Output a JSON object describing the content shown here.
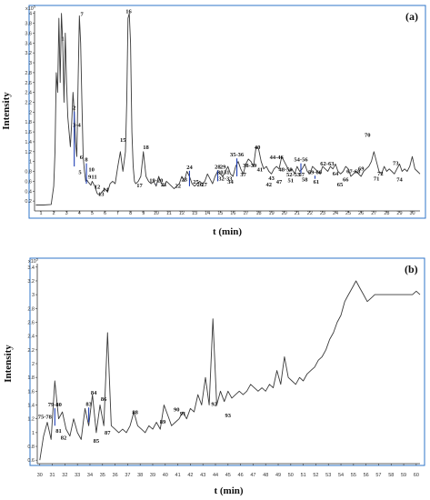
{
  "chart_data": [
    {
      "type": "line",
      "panel": "(a)",
      "scale_label": "x10",
      "scale_exp": "5",
      "xlabel": "t (min)",
      "ylabel": "Intensity",
      "xlim": [
        0.5,
        30.6
      ],
      "ylim": [
        0,
        4.05
      ],
      "x_ticks": [
        "1",
        "2",
        "3",
        "4",
        "5",
        "6",
        "7",
        "8",
        "9",
        "10",
        "11",
        "12",
        "13",
        "14",
        "15",
        "16",
        "17",
        "18",
        "19",
        "20",
        "21",
        "22",
        "23",
        "24",
        "25",
        "26",
        "27",
        "28",
        "29",
        "30"
      ],
      "y_ticks": [
        "0.2",
        "0.4",
        "0.6",
        "0.8",
        "1",
        "1.2",
        "1.4",
        "1.6",
        "1.8",
        "2",
        "2.2",
        "2.4",
        "2.6",
        "2.8",
        "3",
        "3.2",
        "3.4",
        "3.6",
        "3.8",
        "4"
      ],
      "series": [
        {
          "x": [
            0.6,
            1.2,
            1.8,
            2.0,
            2.1,
            2.2,
            2.3,
            2.4,
            2.5,
            2.6,
            2.7,
            2.8,
            2.9,
            3.0,
            3.1,
            3.2,
            3.3,
            3.4,
            3.5,
            3.6,
            3.7,
            3.8,
            3.9,
            4.0,
            4.1,
            4.2,
            4.3,
            4.4,
            4.5,
            4.6,
            4.7,
            4.8,
            4.9,
            5.0,
            5.2,
            5.4,
            5.6,
            5.8,
            6.0,
            6.2,
            6.4,
            6.6,
            6.8,
            7.0,
            7.2,
            7.4,
            7.6,
            7.7,
            7.8,
            7.9,
            8.0,
            8.1,
            8.2,
            8.3,
            8.4,
            8.6,
            8.8,
            9.0,
            9.2,
            9.4,
            9.6,
            9.8,
            10.0,
            10.2,
            10.4,
            10.6,
            10.8,
            11.0,
            11.2,
            11.4,
            11.6,
            11.8,
            12.0,
            12.2,
            12.4,
            12.6,
            12.8,
            13.0,
            13.2,
            13.4,
            13.6,
            13.8,
            14.0,
            14.2,
            14.4,
            14.6,
            14.8,
            15.0,
            15.2,
            15.4,
            15.6,
            15.8,
            16.0,
            16.2,
            16.4,
            16.6,
            16.8,
            17.0,
            17.2,
            17.4,
            17.6,
            17.8,
            18.0,
            18.2,
            18.4,
            18.6,
            18.8,
            19.0,
            19.2,
            19.4,
            19.6,
            19.8,
            20.0,
            20.2,
            20.4,
            20.6,
            20.8,
            21.0,
            21.2,
            21.4,
            21.6,
            21.8,
            22.0,
            22.2,
            22.4,
            22.6,
            22.8,
            23.0,
            23.2,
            23.4,
            23.6,
            23.8,
            24.0,
            24.2,
            24.4,
            24.6,
            24.8,
            25.0,
            25.2,
            25.4,
            25.6,
            25.8,
            26.0,
            26.2,
            26.4,
            26.6,
            26.8,
            27.0,
            27.2,
            27.4,
            27.6,
            27.8,
            28.0,
            28.2,
            28.4,
            28.6,
            28.8,
            29.0,
            29.2,
            29.4,
            29.6,
            29.8,
            30.0,
            30.2,
            30.4,
            30.6
          ],
          "y": [
            0.12,
            0.12,
            0.13,
            0.5,
            1.2,
            2.8,
            2.4,
            3.9,
            2.6,
            4.0,
            3.4,
            2.2,
            3.6,
            2.6,
            1.9,
            1.6,
            1.3,
            1.8,
            2.4,
            2.0,
            1.4,
            1.1,
            2.6,
            3.95,
            3.4,
            2.2,
            1.1,
            0.8,
            0.6,
            0.62,
            0.58,
            0.55,
            0.52,
            0.6,
            0.5,
            0.35,
            0.32,
            0.4,
            0.45,
            0.38,
            0.55,
            0.6,
            0.55,
            0.9,
            1.2,
            0.8,
            1.2,
            2.2,
            3.9,
            4.0,
            3.4,
            1.6,
            0.9,
            0.6,
            0.55,
            0.6,
            0.7,
            1.2,
            0.7,
            0.6,
            0.55,
            0.6,
            0.5,
            0.7,
            0.55,
            0.5,
            0.6,
            0.55,
            0.5,
            0.45,
            0.5,
            0.55,
            0.7,
            0.6,
            0.8,
            0.7,
            0.55,
            0.5,
            0.55,
            0.6,
            0.55,
            0.6,
            0.75,
            0.65,
            0.55,
            0.7,
            0.8,
            0.75,
            0.7,
            0.8,
            0.9,
            0.75,
            0.7,
            0.9,
            1.0,
            0.85,
            0.75,
            0.95,
            1.05,
            1.0,
            0.9,
            1.3,
            1.25,
            1.0,
            0.85,
            0.9,
            0.8,
            0.75,
            0.85,
            0.9,
            0.85,
            1.1,
            1.0,
            0.9,
            0.8,
            0.85,
            0.75,
            0.9,
            0.8,
            0.85,
            0.95,
            0.8,
            0.75,
            0.9,
            0.85,
            0.8,
            0.75,
            0.9,
            0.85,
            0.8,
            0.9,
            0.85,
            0.95,
            0.8,
            0.75,
            0.8,
            0.9,
            0.85,
            0.7,
            0.75,
            0.8,
            0.75,
            0.7,
            0.8,
            0.85,
            0.9,
            1.0,
            1.2,
            1.0,
            0.8,
            0.75,
            0.9,
            0.8,
            0.85,
            0.8,
            0.75,
            0.85,
            0.95,
            0.8,
            0.85,
            0.8,
            0.9,
            1.1,
            0.85,
            0.8,
            0.75
          ]
        }
      ],
      "peaks": [
        {
          "label": "1",
          "x": 2.7,
          "y": 3.45
        },
        {
          "label": "2",
          "x": 3.6,
          "y": 2.05,
          "mark": true,
          "base": 0.9
        },
        {
          "label": "3-4",
          "x": 3.8,
          "y": 1.7
        },
        {
          "label": "5",
          "x": 4.05,
          "y": 0.75
        },
        {
          "label": "6",
          "x": 4.15,
          "y": 1.05
        },
        {
          "label": "7",
          "x": 4.2,
          "y": 3.95
        },
        {
          "label": "8",
          "x": 4.55,
          "y": 1.0,
          "mark": true,
          "base": 0.55
        },
        {
          "label": "9",
          "x": 4.8,
          "y": 0.65
        },
        {
          "label": "10",
          "x": 4.95,
          "y": 0.8
        },
        {
          "label": "11",
          "x": 5.15,
          "y": 0.65
        },
        {
          "label": "12",
          "x": 5.4,
          "y": 0.45
        },
        {
          "label": "13",
          "x": 5.7,
          "y": 0.3
        },
        {
          "label": "14",
          "x": 6.05,
          "y": 0.4
        },
        {
          "label": "15",
          "x": 7.4,
          "y": 1.4
        },
        {
          "label": "16",
          "x": 7.85,
          "y": 4.0
        },
        {
          "label": "17",
          "x": 8.7,
          "y": 0.48
        },
        {
          "label": "18",
          "x": 9.2,
          "y": 1.25
        },
        {
          "label": "19-20",
          "x": 10.0,
          "y": 0.58,
          "mark": true,
          "base": 0.55
        },
        {
          "label": "21",
          "x": 10.6,
          "y": 0.5
        },
        {
          "label": "22",
          "x": 11.7,
          "y": 0.47
        },
        {
          "label": "23",
          "x": 12.2,
          "y": 0.6
        },
        {
          "label": "24",
          "x": 12.6,
          "y": 0.85,
          "mark": true,
          "base": 0.5
        },
        {
          "label": "25",
          "x": 13.1,
          "y": 0.55
        },
        {
          "label": "26",
          "x": 13.4,
          "y": 0.5
        },
        {
          "label": "27",
          "x": 13.75,
          "y": 0.5
        },
        {
          "label": "28",
          "x": 14.8,
          "y": 0.86,
          "mark": true,
          "base": 0.6
        },
        {
          "label": "29",
          "x": 15.2,
          "y": 0.86
        },
        {
          "label": "30",
          "x": 15.0,
          "y": 0.75
        },
        {
          "label": "31",
          "x": 15.5,
          "y": 0.75
        },
        {
          "label": "32-33",
          "x": 15.4,
          "y": 0.62
        },
        {
          "label": "34",
          "x": 15.8,
          "y": 0.55
        },
        {
          "label": "35-36",
          "x": 16.3,
          "y": 1.1,
          "mark": true,
          "base": 0.7
        },
        {
          "label": "37",
          "x": 16.8,
          "y": 0.7
        },
        {
          "label": "38-39",
          "x": 17.3,
          "y": 0.88
        },
        {
          "label": "40",
          "x": 17.9,
          "y": 1.25
        },
        {
          "label": "41",
          "x": 18.1,
          "y": 0.8
        },
        {
          "label": "42",
          "x": 18.8,
          "y": 0.5
        },
        {
          "label": "43",
          "x": 19.0,
          "y": 0.63
        },
        {
          "label": "44-46",
          "x": 19.4,
          "y": 1.05
        },
        {
          "label": "47",
          "x": 19.6,
          "y": 0.55
        },
        {
          "label": "48-50",
          "x": 20.1,
          "y": 0.8
        },
        {
          "label": "51",
          "x": 20.5,
          "y": 0.58
        },
        {
          "label": "52-53",
          "x": 20.7,
          "y": 0.7
        },
        {
          "label": "54-56",
          "x": 21.3,
          "y": 1.0,
          "mark": true,
          "base": 0.75
        },
        {
          "label": "57",
          "x": 21.35,
          "y": 0.7
        },
        {
          "label": "58",
          "x": 21.6,
          "y": 0.6
        },
        {
          "label": "59-60",
          "x": 22.4,
          "y": 0.75,
          "mark": true,
          "base": 0.65
        },
        {
          "label": "61",
          "x": 22.5,
          "y": 0.55
        },
        {
          "label": "62-63",
          "x": 23.35,
          "y": 0.92
        },
        {
          "label": "64",
          "x": 24.0,
          "y": 0.72
        },
        {
          "label": "65",
          "x": 24.35,
          "y": 0.5
        },
        {
          "label": "66",
          "x": 24.8,
          "y": 0.6
        },
        {
          "label": "67-68",
          "x": 25.4,
          "y": 0.76
        },
        {
          "label": "69",
          "x": 26.0,
          "y": 0.82
        },
        {
          "label": "70",
          "x": 26.5,
          "y": 1.5
        },
        {
          "label": "71",
          "x": 27.2,
          "y": 0.62
        },
        {
          "label": "72",
          "x": 27.5,
          "y": 0.72
        },
        {
          "label": "73",
          "x": 28.7,
          "y": 0.93
        },
        {
          "label": "74",
          "x": 29.0,
          "y": 0.6
        }
      ]
    },
    {
      "type": "line",
      "panel": "(b)",
      "scale_label": "x10",
      "scale_exp": "5",
      "xlabel": "t (min)",
      "ylabel": "Intensity",
      "xlim": [
        29.8,
        60.3
      ],
      "ylim": [
        0.55,
        3.45
      ],
      "x_ticks": [
        "30",
        "31",
        "32",
        "33",
        "34",
        "35",
        "36",
        "37",
        "38",
        "39",
        "40",
        "41",
        "42",
        "43",
        "44",
        "45",
        "46",
        "47",
        "48",
        "49",
        "50",
        "51",
        "52",
        "53",
        "54",
        "55",
        "56",
        "57",
        "58",
        "59",
        "60"
      ],
      "y_ticks": [
        "0.6",
        "0.8",
        "1",
        "1.2",
        "1.4",
        "1.6",
        "1.8",
        "2",
        "2.2",
        "2.4",
        "2.6",
        "2.8",
        "3",
        "3.2",
        "3.4"
      ],
      "series": [
        {
          "x": [
            30.0,
            30.3,
            30.6,
            30.9,
            31.2,
            31.5,
            31.8,
            32.1,
            32.4,
            32.7,
            33.0,
            33.3,
            33.6,
            33.9,
            34.2,
            34.5,
            34.8,
            35.1,
            35.4,
            35.7,
            36.0,
            36.3,
            36.6,
            36.9,
            37.2,
            37.5,
            37.8,
            38.1,
            38.4,
            38.7,
            39.0,
            39.3,
            39.6,
            39.9,
            40.2,
            40.5,
            40.8,
            41.1,
            41.4,
            41.7,
            42.0,
            42.3,
            42.6,
            42.9,
            43.2,
            43.5,
            43.8,
            44.1,
            44.4,
            44.7,
            45.0,
            45.3,
            45.6,
            45.9,
            46.2,
            46.5,
            46.8,
            47.1,
            47.4,
            47.7,
            48.0,
            48.3,
            48.6,
            48.9,
            49.2,
            49.5,
            49.8,
            50.1,
            50.4,
            50.7,
            51.0,
            51.3,
            51.6,
            51.9,
            52.2,
            52.5,
            52.8,
            53.1,
            53.4,
            53.7,
            54.0,
            54.3,
            54.6,
            54.9,
            55.2,
            55.5,
            55.8,
            56.1,
            56.4,
            56.7,
            57.0,
            57.3,
            57.6,
            57.9,
            58.2,
            58.5,
            58.8,
            59.1,
            59.4,
            59.7,
            60.0,
            60.3
          ],
          "y": [
            0.6,
            0.95,
            1.15,
            0.9,
            1.75,
            1.2,
            1.3,
            1.05,
            0.95,
            1.2,
            1.0,
            0.9,
            1.35,
            1.1,
            1.55,
            1.0,
            1.4,
            1.1,
            2.45,
            1.1,
            1.05,
            1.0,
            1.05,
            1.0,
            1.1,
            1.3,
            1.1,
            1.05,
            1.0,
            1.1,
            1.05,
            1.15,
            1.05,
            1.4,
            1.25,
            1.1,
            1.15,
            1.2,
            1.3,
            1.2,
            1.35,
            1.3,
            1.55,
            1.4,
            1.8,
            1.4,
            2.65,
            1.4,
            1.6,
            1.45,
            1.6,
            1.5,
            1.55,
            1.6,
            1.55,
            1.6,
            1.7,
            1.65,
            1.6,
            1.65,
            1.6,
            1.7,
            1.65,
            1.9,
            1.7,
            2.1,
            1.8,
            1.75,
            1.7,
            1.8,
            1.75,
            1.85,
            1.9,
            1.95,
            2.05,
            2.1,
            2.2,
            2.35,
            2.45,
            2.6,
            2.7,
            2.9,
            3.0,
            3.1,
            3.2,
            3.1,
            3.0,
            2.9,
            2.95,
            3.0,
            3.0,
            3.0,
            3.0,
            3.0,
            3.0,
            3.0,
            3.0,
            3.0,
            3.0,
            3.0,
            3.05,
            3.0
          ]
        }
      ],
      "peaks": [
        {
          "label": "75-78",
          "x": 30.4,
          "y": 1.2
        },
        {
          "label": "79-80",
          "x": 31.2,
          "y": 1.38,
          "mark": true,
          "base": 1.1
        },
        {
          "label": "81",
          "x": 31.5,
          "y": 1.0
        },
        {
          "label": "82",
          "x": 31.9,
          "y": 0.9
        },
        {
          "label": "83",
          "x": 33.9,
          "y": 1.39,
          "mark": true,
          "base": 1.15
        },
        {
          "label": "84",
          "x": 34.3,
          "y": 1.55
        },
        {
          "label": "85",
          "x": 34.5,
          "y": 0.85
        },
        {
          "label": "86",
          "x": 35.1,
          "y": 1.46
        },
        {
          "label": "87",
          "x": 35.4,
          "y": 0.97
        },
        {
          "label": "88",
          "x": 37.6,
          "y": 1.27
        },
        {
          "label": "89",
          "x": 39.8,
          "y": 1.13
        },
        {
          "label": "90",
          "x": 40.9,
          "y": 1.31
        },
        {
          "label": "91",
          "x": 41.4,
          "y": 1.25
        },
        {
          "label": "92",
          "x": 43.9,
          "y": 1.39
        },
        {
          "label": "93",
          "x": 45.0,
          "y": 1.22
        }
      ]
    }
  ]
}
